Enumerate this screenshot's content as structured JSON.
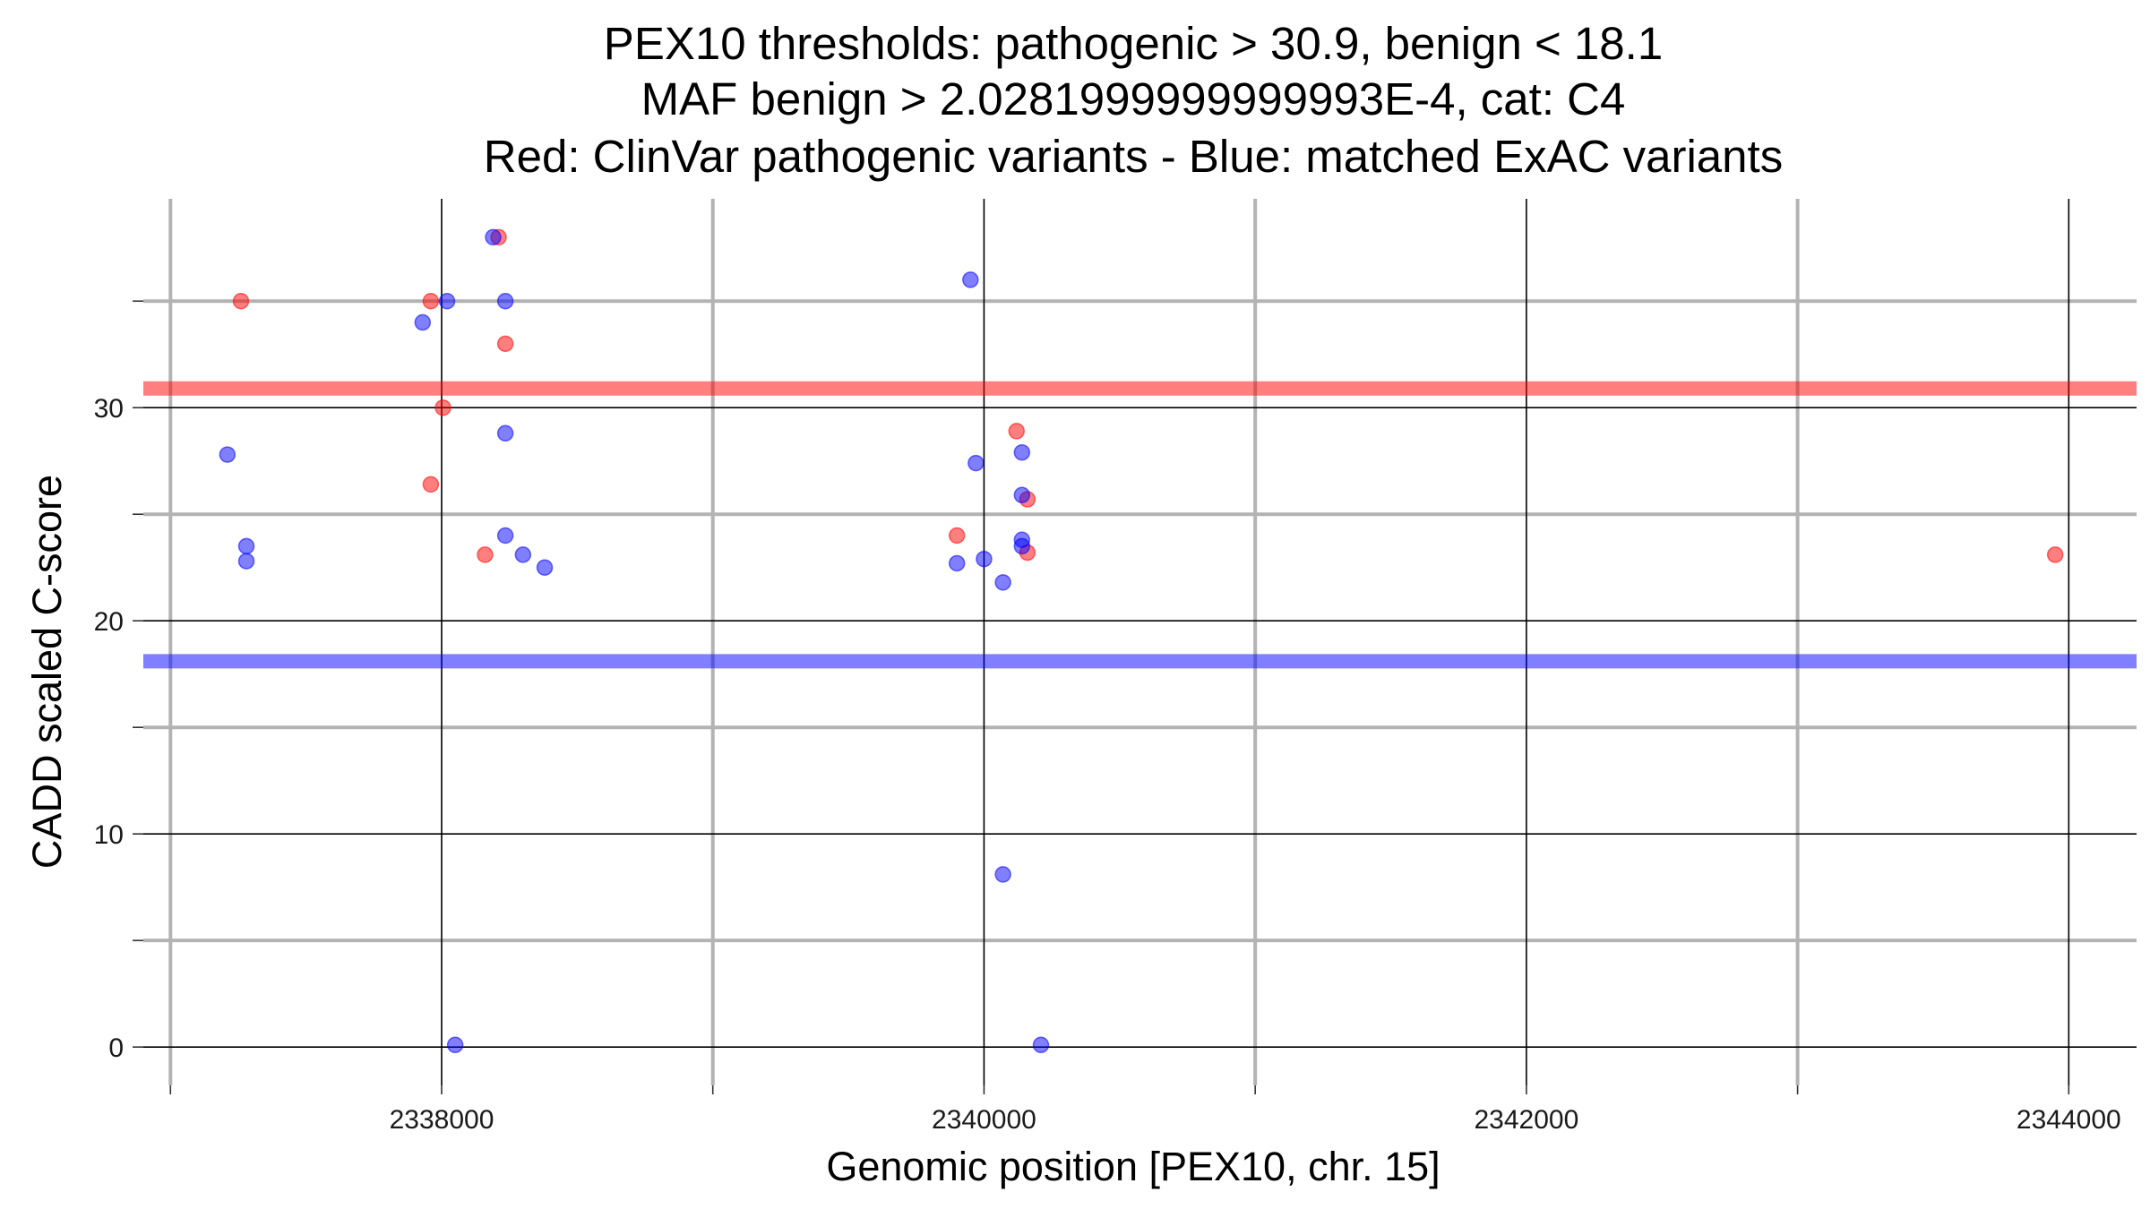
{
  "chart_data": {
    "type": "scatter",
    "title_lines": [
      "PEX10 thresholds: pathogenic > 30.9, benign < 18.1",
      "MAF benign > 2.0281999999999993E-4, cat: C4",
      "Red: ClinVar pathogenic variants - Blue: matched ExAC variants"
    ],
    "xlabel": "Genomic position [PEX10, chr. 15]",
    "ylabel": "CADD scaled C-score",
    "xlim": [
      2336900,
      2344250
    ],
    "ylim": [
      -1.8,
      39.8
    ],
    "x_ticks": [
      2338000,
      2340000,
      2342000,
      2344000
    ],
    "x_tick_labels": [
      "2338000",
      "2340000",
      "2342000",
      "2344000"
    ],
    "x_minor": [
      2337000,
      2339000,
      2341000,
      2343000
    ],
    "y_ticks": [
      0,
      10,
      20,
      30
    ],
    "y_tick_labels": [
      "0",
      "10",
      "20",
      "30"
    ],
    "y_minor": [
      5,
      15,
      25,
      35
    ],
    "grid": true,
    "thresholds": [
      {
        "name": "pathogenic",
        "value": 30.9,
        "color": "#ff0000"
      },
      {
        "name": "benign",
        "value": 18.1,
        "color": "#0000ff"
      }
    ],
    "colors": {
      "pathogenic": "#ff0000",
      "benign": "#0000ff",
      "major_grid": "#000000",
      "minor_grid": "#b3b3b3"
    },
    "series": [
      {
        "color_key": "pathogenic",
        "points": [
          {
            "x": 2337260,
            "y": 35.0
          },
          {
            "x": 2337960,
            "y": 35.0
          },
          {
            "x": 2337960,
            "y": 26.4
          },
          {
            "x": 2338005,
            "y": 30.0
          },
          {
            "x": 2338210,
            "y": 38.0
          },
          {
            "x": 2338235,
            "y": 33.0
          },
          {
            "x": 2338160,
            "y": 23.1
          },
          {
            "x": 2339900,
            "y": 24.0
          },
          {
            "x": 2340120,
            "y": 28.9
          },
          {
            "x": 2340160,
            "y": 25.7
          },
          {
            "x": 2340160,
            "y": 23.2
          },
          {
            "x": 2343950,
            "y": 23.1
          }
        ]
      },
      {
        "color_key": "benign",
        "points": [
          {
            "x": 2337210,
            "y": 27.8
          },
          {
            "x": 2337280,
            "y": 23.5
          },
          {
            "x": 2337280,
            "y": 22.8
          },
          {
            "x": 2337930,
            "y": 34.0
          },
          {
            "x": 2338020,
            "y": 35.0
          },
          {
            "x": 2338190,
            "y": 38.0
          },
          {
            "x": 2338235,
            "y": 35.0
          },
          {
            "x": 2338235,
            "y": 28.8
          },
          {
            "x": 2338235,
            "y": 24.0
          },
          {
            "x": 2338300,
            "y": 23.1
          },
          {
            "x": 2338380,
            "y": 22.5
          },
          {
            "x": 2338050,
            "y": 0.1
          },
          {
            "x": 2339950,
            "y": 36.0
          },
          {
            "x": 2339970,
            "y": 27.4
          },
          {
            "x": 2339900,
            "y": 22.7
          },
          {
            "x": 2340000,
            "y": 22.9
          },
          {
            "x": 2340070,
            "y": 21.8
          },
          {
            "x": 2340140,
            "y": 27.9
          },
          {
            "x": 2340140,
            "y": 25.9
          },
          {
            "x": 2340140,
            "y": 23.8
          },
          {
            "x": 2340140,
            "y": 23.5
          },
          {
            "x": 2340070,
            "y": 8.1
          },
          {
            "x": 2340210,
            "y": 0.1
          }
        ]
      }
    ]
  }
}
